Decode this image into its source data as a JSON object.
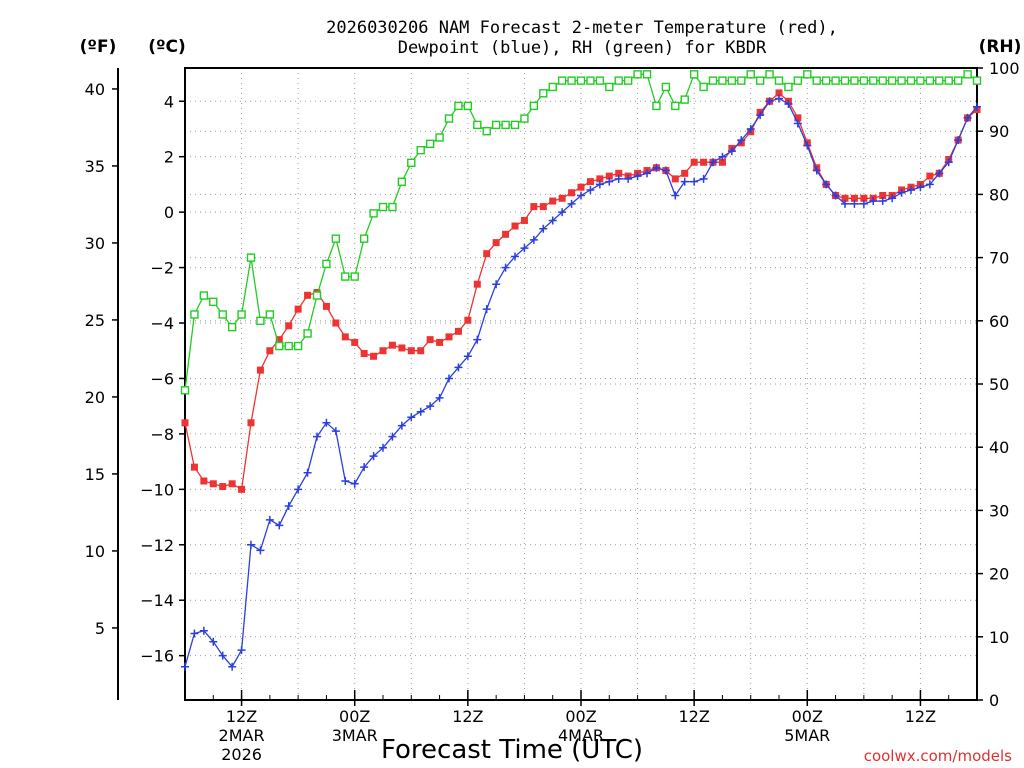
{
  "chart_data": {
    "type": "line",
    "title_line1": "2026030206 NAM Forecast 2-meter Temperature (red),",
    "title_line2": "Dewpoint (blue), RH (green) for KBDR",
    "xlabel": "Forecast Time (UTC)",
    "credit": "coolwx.com/models",
    "axis_headers": {
      "fahrenheit": "(ºF)",
      "celsius": "(ºC)",
      "rh": "(RH)"
    },
    "x_unit": "forecast hour",
    "xlim": [
      6,
      90
    ],
    "x_ticks": [
      {
        "hour": 12,
        "lines": [
          "12Z",
          "2MAR",
          "2026"
        ]
      },
      {
        "hour": 24,
        "lines": [
          "00Z",
          "3MAR"
        ]
      },
      {
        "hour": 36,
        "lines": [
          "12Z"
        ]
      },
      {
        "hour": 48,
        "lines": [
          "00Z",
          "4MAR"
        ]
      },
      {
        "hour": 60,
        "lines": [
          "12Z"
        ]
      },
      {
        "hour": 72,
        "lines": [
          "00Z",
          "5MAR"
        ]
      },
      {
        "hour": 84,
        "lines": [
          "12Z"
        ]
      }
    ],
    "celsius_axis": {
      "ylim": [
        -17.6,
        5.2
      ],
      "ticks": [
        -16,
        -14,
        -12,
        -10,
        -8,
        -6,
        -4,
        -2,
        0,
        2,
        4
      ]
    },
    "fahrenheit_axis": {
      "ticks": [
        5,
        10,
        15,
        20,
        25,
        30,
        35,
        40
      ]
    },
    "rh_axis": {
      "ylim": [
        0,
        100
      ],
      "ticks": [
        0,
        10,
        20,
        30,
        40,
        50,
        60,
        70,
        80,
        90,
        100
      ]
    },
    "series": [
      {
        "name": "Temperature",
        "unit": "C",
        "color": "#ee3333",
        "marker": "square",
        "x": [
          6,
          7,
          8,
          9,
          10,
          11,
          12,
          13,
          14,
          15,
          16,
          17,
          18,
          19,
          20,
          21,
          22,
          23,
          24,
          25,
          26,
          27,
          28,
          29,
          30,
          31,
          32,
          33,
          34,
          35,
          36,
          37,
          38,
          39,
          40,
          41,
          42,
          43,
          44,
          45,
          46,
          47,
          48,
          49,
          50,
          51,
          52,
          53,
          54,
          55,
          56,
          57,
          58,
          59,
          60,
          61,
          62,
          63,
          64,
          65,
          66,
          67,
          68,
          69,
          70,
          71,
          72,
          73,
          74,
          75,
          76,
          77,
          78,
          79,
          80,
          81,
          82,
          83,
          84,
          85,
          86,
          87,
          88,
          89,
          90
        ],
        "values": [
          -7.6,
          -9.2,
          -9.7,
          -9.8,
          -9.9,
          -9.8,
          -10.0,
          -7.6,
          -5.7,
          -5.0,
          -4.6,
          -4.1,
          -3.5,
          -3.0,
          -2.9,
          -3.4,
          -4.0,
          -4.5,
          -4.7,
          -5.1,
          -5.2,
          -5.0,
          -4.8,
          -4.9,
          -5.0,
          -5.0,
          -4.6,
          -4.7,
          -4.5,
          -4.3,
          -3.9,
          -2.6,
          -1.5,
          -1.1,
          -0.8,
          -0.5,
          -0.3,
          0.2,
          0.2,
          0.4,
          0.5,
          0.7,
          0.9,
          1.1,
          1.2,
          1.3,
          1.4,
          1.3,
          1.4,
          1.5,
          1.6,
          1.5,
          1.2,
          1.4,
          1.8,
          1.8,
          1.8,
          1.8,
          2.3,
          2.5,
          2.9,
          3.6,
          4.0,
          4.3,
          4.0,
          3.4,
          2.5,
          1.6,
          1.0,
          0.6,
          0.5,
          0.5,
          0.5,
          0.5,
          0.6,
          0.6,
          0.8,
          0.9,
          1.0,
          1.3,
          1.4,
          1.9,
          2.6,
          3.4,
          3.7
        ]
      },
      {
        "name": "Dewpoint",
        "unit": "C",
        "color": "#2a3fe0",
        "marker": "plus",
        "x": [
          6,
          7,
          8,
          9,
          10,
          11,
          12,
          13,
          14,
          15,
          16,
          17,
          18,
          19,
          20,
          21,
          22,
          23,
          24,
          25,
          26,
          27,
          28,
          29,
          30,
          31,
          32,
          33,
          34,
          35,
          36,
          37,
          38,
          39,
          40,
          41,
          42,
          43,
          44,
          45,
          46,
          47,
          48,
          49,
          50,
          51,
          52,
          53,
          54,
          55,
          56,
          57,
          58,
          59,
          60,
          61,
          62,
          63,
          64,
          65,
          66,
          67,
          68,
          69,
          70,
          71,
          72,
          73,
          74,
          75,
          76,
          77,
          78,
          79,
          80,
          81,
          82,
          83,
          84,
          85,
          86,
          87,
          88,
          89,
          90
        ],
        "values": [
          -16.4,
          -15.2,
          -15.1,
          -15.5,
          -16.0,
          -16.4,
          -15.8,
          -12.0,
          -12.2,
          -11.1,
          -11.3,
          -10.6,
          -10.0,
          -9.4,
          -8.1,
          -7.6,
          -7.9,
          -9.7,
          -9.8,
          -9.2,
          -8.8,
          -8.5,
          -8.1,
          -7.7,
          -7.4,
          -7.2,
          -7.0,
          -6.7,
          -6.0,
          -5.6,
          -5.2,
          -4.6,
          -3.5,
          -2.6,
          -2.0,
          -1.6,
          -1.3,
          -1.0,
          -0.6,
          -0.3,
          0.0,
          0.3,
          0.6,
          0.8,
          1.0,
          1.1,
          1.2,
          1.2,
          1.3,
          1.4,
          1.6,
          1.5,
          0.6,
          1.1,
          1.1,
          1.2,
          1.8,
          2.0,
          2.2,
          2.6,
          3.0,
          3.5,
          4.0,
          4.1,
          3.9,
          3.2,
          2.4,
          1.5,
          1.0,
          0.6,
          0.3,
          0.3,
          0.3,
          0.4,
          0.4,
          0.5,
          0.7,
          0.8,
          0.9,
          1.0,
          1.4,
          1.8,
          2.6,
          3.4,
          3.8
        ]
      },
      {
        "name": "Relative Humidity",
        "unit": "%",
        "color": "#22cc22",
        "marker": "open-square",
        "x": [
          6,
          7,
          8,
          9,
          10,
          11,
          12,
          13,
          14,
          15,
          16,
          17,
          18,
          19,
          20,
          21,
          22,
          23,
          24,
          25,
          26,
          27,
          28,
          29,
          30,
          31,
          32,
          33,
          34,
          35,
          36,
          37,
          38,
          39,
          40,
          41,
          42,
          43,
          44,
          45,
          46,
          47,
          48,
          49,
          50,
          51,
          52,
          53,
          54,
          55,
          56,
          57,
          58,
          59,
          60,
          61,
          62,
          63,
          64,
          65,
          66,
          67,
          68,
          69,
          70,
          71,
          72,
          73,
          74,
          75,
          76,
          77,
          78,
          79,
          80,
          81,
          82,
          83,
          84,
          85,
          86,
          87,
          88,
          89,
          90
        ],
        "values": [
          49,
          61,
          64,
          63,
          61,
          59,
          61,
          70,
          60,
          61,
          56,
          56,
          56,
          58,
          64,
          69,
          73,
          67,
          67,
          73,
          77,
          78,
          78,
          82,
          85,
          87,
          88,
          89,
          92,
          94,
          94,
          91,
          90,
          91,
          91,
          91,
          92,
          94,
          96,
          97,
          98,
          98,
          98,
          98,
          98,
          97,
          98,
          98,
          99,
          99,
          94,
          97,
          94,
          95,
          99,
          97,
          98,
          98,
          98,
          98,
          99,
          98,
          99,
          98,
          97,
          98,
          99,
          98,
          98,
          98,
          98,
          98,
          98,
          98,
          98,
          98,
          98,
          98,
          98,
          98,
          98,
          98,
          98,
          99,
          98
        ]
      }
    ]
  }
}
